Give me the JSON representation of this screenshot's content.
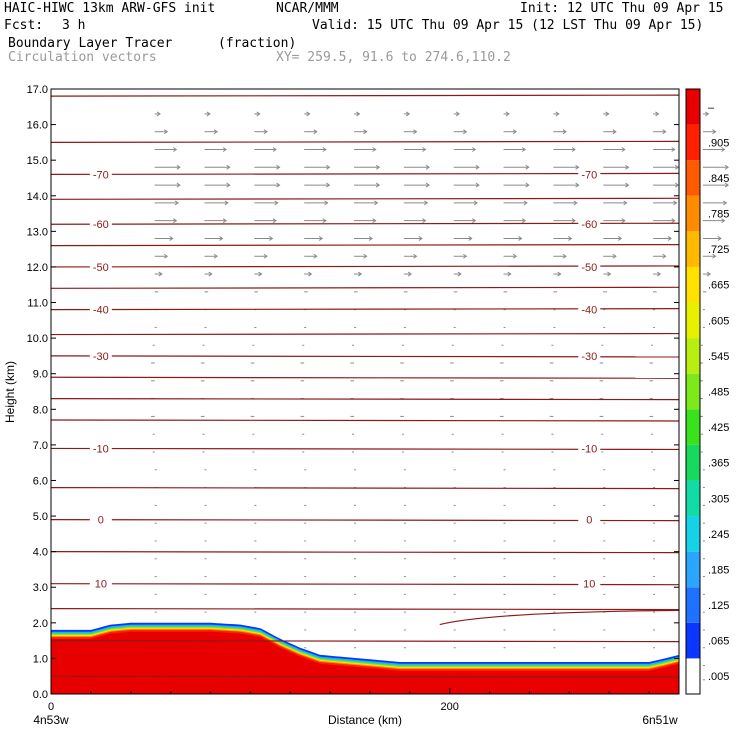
{
  "header": {
    "model": "HAIC-HIWC 13km ARW-GFS init",
    "org": "NCAR/MMM",
    "init": "Init: 12 UTC Thu 09 Apr 15",
    "fcst_label": "Fcst:",
    "fcst_value": "3 h",
    "valid": "Valid: 15 UTC Thu 09 Apr 15 (12 LST Thu 09 Apr 15)",
    "field": "Boundary Layer Tracer",
    "field_units": "(fraction)",
    "vectors": "Circulation vectors",
    "xy": "XY= 259.5, 91.6 to 274.6,110.2"
  },
  "chart_data": {
    "type": "heatmap",
    "title": "Boundary Layer Tracer (fraction)",
    "xlabel": "Distance (km)",
    "ylabel": "Height (km)",
    "xlim": [
      0,
      315
    ],
    "ylim": [
      0,
      17
    ],
    "x_ticks": [
      0,
      200
    ],
    "x_tick_labels": [
      "0",
      "200"
    ],
    "x_end_labels": {
      "left": "4n53w",
      "right": "6n51w"
    },
    "y_ticks": [
      0.0,
      1.0,
      2.0,
      3.0,
      4.0,
      5.0,
      6.0,
      7.0,
      8.0,
      9.0,
      10.0,
      11.0,
      12.0,
      13.0,
      14.0,
      15.0,
      16.0,
      17.0
    ],
    "y_tick_labels": [
      "0.0",
      "1.0",
      "2.0",
      "3.0",
      "4.0",
      "5.0",
      "6.0",
      "7.0",
      "8.0",
      "9.0",
      "10.0",
      "11.0",
      "12.0",
      "13.0",
      "14.0",
      "15.0",
      "16.0",
      "17.0"
    ],
    "colorbar": {
      "labels": [
        ".005",
        ".065",
        ".125",
        ".185",
        ".245",
        ".305",
        ".365",
        ".425",
        ".485",
        ".545",
        ".605",
        ".665",
        ".725",
        ".785",
        ".845",
        ".905",
        "–"
      ],
      "colors": [
        "#ffffff",
        "#0a36ff",
        "#1f72ff",
        "#2aa6ff",
        "#16d2e6",
        "#12dca6",
        "#18d85e",
        "#3ae21e",
        "#7de81a",
        "#b8ee10",
        "#e6f000",
        "#ffe100",
        "#ffb900",
        "#ff8c00",
        "#ff5a00",
        "#ff2000",
        "#e80000"
      ]
    },
    "tracer_top_profile": {
      "x_km": [
        0,
        10,
        20,
        30,
        40,
        60,
        80,
        95,
        105,
        115,
        125,
        135,
        145,
        155,
        165,
        175,
        190,
        210,
        240,
        270,
        300,
        308,
        315
      ],
      "height_km": [
        1.8,
        1.8,
        1.8,
        1.95,
        2.0,
        2.0,
        2.0,
        1.95,
        1.85,
        1.55,
        1.3,
        1.1,
        1.05,
        1.0,
        0.95,
        0.9,
        0.9,
        0.9,
        0.9,
        0.9,
        0.9,
        1.0,
        1.1
      ],
      "core_value": 0.95
    },
    "contour_labels": [
      {
        "value": "-70",
        "x_km": 25,
        "height_km": 14.6
      },
      {
        "value": "-70",
        "x_km": 270,
        "height_km": 14.6
      },
      {
        "value": "-60",
        "x_km": 25,
        "height_km": 13.2
      },
      {
        "value": "-60",
        "x_km": 270,
        "height_km": 13.2
      },
      {
        "value": "-50",
        "x_km": 25,
        "height_km": 12.0
      },
      {
        "value": "-50",
        "x_km": 270,
        "height_km": 12.0
      },
      {
        "value": "-40",
        "x_km": 25,
        "height_km": 10.8
      },
      {
        "value": "-40",
        "x_km": 270,
        "height_km": 10.8
      },
      {
        "value": "-30",
        "x_km": 25,
        "height_km": 9.5
      },
      {
        "value": "-30",
        "x_km": 270,
        "height_km": 9.5
      },
      {
        "value": "-10",
        "x_km": 25,
        "height_km": 6.9
      },
      {
        "value": "-10",
        "x_km": 270,
        "height_km": 6.9
      },
      {
        "value": "0",
        "x_km": 25,
        "height_km": 4.9
      },
      {
        "value": "0",
        "x_km": 270,
        "height_km": 4.9
      },
      {
        "value": "10",
        "x_km": 25,
        "height_km": 3.1
      },
      {
        "value": "10",
        "x_km": 270,
        "height_km": 3.1
      }
    ],
    "isotherm_heights_km": [
      0.5,
      1.5,
      2.4,
      3.1,
      4.0,
      4.9,
      5.8,
      6.9,
      7.7,
      8.3,
      8.9,
      9.5,
      10.1,
      10.8,
      11.4,
      12.0,
      12.6,
      13.2,
      13.9,
      14.6,
      15.5,
      16.8
    ],
    "vectors": {
      "rows_km": [
        16.3,
        15.8,
        15.3,
        14.8,
        14.3,
        13.8,
        13.3,
        12.8,
        12.3,
        11.8,
        11.3,
        10.8,
        10.3,
        9.8,
        9.3,
        8.8,
        8.3,
        7.8,
        7.3,
        6.8,
        6.3,
        5.8,
        5.3,
        4.8,
        4.3,
        3.8,
        3.3,
        2.8,
        2.3,
        1.8,
        1.3,
        0.8,
        0.4
      ],
      "u_ms": [
        3,
        7,
        12,
        14,
        14,
        13,
        12,
        10,
        7,
        4,
        2,
        1,
        0,
        -1,
        -2,
        -2,
        -2,
        -2,
        -1,
        -1,
        0,
        0,
        0,
        0,
        0,
        0,
        0,
        0,
        0,
        0,
        0,
        0,
        0
      ]
    }
  }
}
